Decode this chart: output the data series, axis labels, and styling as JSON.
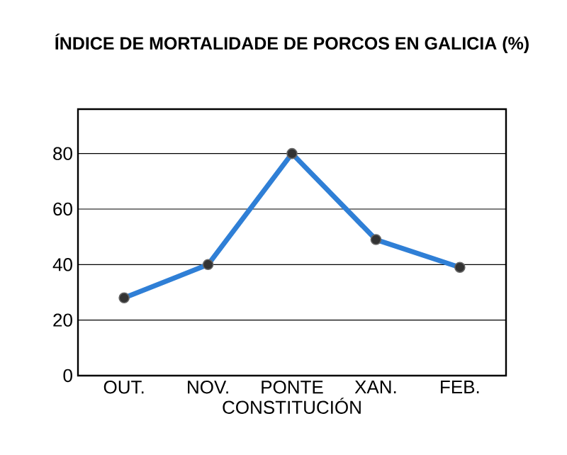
{
  "chart_data": {
    "type": "line",
    "title": "ÍNDICE DE MORTALIDADE DE PORCOS EN GALICIA (%)",
    "xlabel": "CONSTITUCIÓN",
    "categories": [
      "OUT.",
      "NOV.",
      "PONTE",
      "XAN.",
      "FEB."
    ],
    "series": [
      {
        "color": "#2f7fd6",
        "values": [
          28,
          40,
          80,
          49,
          39
        ]
      }
    ],
    "ylim": [
      0,
      96
    ],
    "yticks": [
      0,
      20,
      40,
      60,
      80
    ],
    "grid": "y",
    "marker": "circle",
    "line_style": "solid"
  }
}
